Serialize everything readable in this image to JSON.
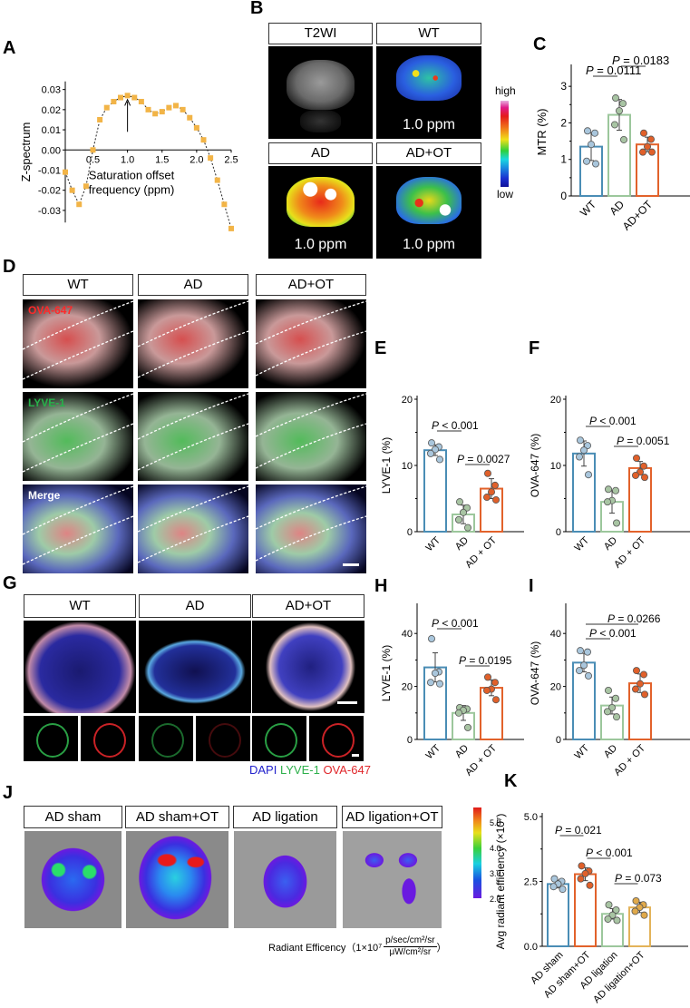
{
  "panels": {
    "A": "A",
    "B": "B",
    "C": "C",
    "D": "D",
    "E": "E",
    "F": "F",
    "G": "G",
    "H": "H",
    "I": "I",
    "J": "J",
    "K": "K"
  },
  "panel_b": {
    "headers": [
      "T2WI",
      "WT",
      "AD",
      "AD+OT"
    ],
    "ppm_label": "1.0 ppm",
    "colorbar_high": "high",
    "colorbar_low": "low"
  },
  "panel_d": {
    "headers": [
      "WT",
      "AD",
      "AD+OT"
    ],
    "rows": [
      "OVA-647",
      "LYVE-1",
      "Merge"
    ],
    "colors": {
      "OVA-647": "#ff2a2a",
      "LYVE-1": "#27b14a",
      "Merge": "#ffffff"
    }
  },
  "panel_g": {
    "headers": [
      "WT",
      "AD",
      "AD+OT"
    ],
    "legend": [
      {
        "label": "DAPI",
        "color": "#2222cc"
      },
      {
        "label": "LYVE-1",
        "color": "#2db04b"
      },
      {
        "label": "OVA-647",
        "color": "#e0262a"
      }
    ]
  },
  "panel_j": {
    "headers": [
      "AD sham",
      "AD sham+OT",
      "AD ligation",
      "AD ligation+OT"
    ],
    "colorbar_ticks": [
      "5.0",
      "4.0",
      "3.0",
      "2.0"
    ],
    "caption_prefix": "Radiant Efficency（1×10",
    "caption_exp": "7",
    "caption_num": "p/sec/cm²/sr",
    "caption_den": "μW/cm²/sr",
    "caption_suffix": "）"
  },
  "chart_data": [
    {
      "id": "A",
      "type": "scatter",
      "title": "",
      "xlabel": "Saturation offset frequency (ppm)",
      "ylabel": "Z-spectrum",
      "x": [
        0.1,
        0.2,
        0.3,
        0.4,
        0.5,
        0.6,
        0.7,
        0.8,
        0.9,
        1.0,
        1.1,
        1.2,
        1.3,
        1.4,
        1.5,
        1.6,
        1.7,
        1.8,
        1.9,
        2.0,
        2.1,
        2.2,
        2.3,
        2.4,
        2.5
      ],
      "y": [
        -0.011,
        -0.02,
        -0.027,
        -0.018,
        0.0,
        0.015,
        0.021,
        0.024,
        0.026,
        0.027,
        0.026,
        0.024,
        0.02,
        0.018,
        0.019,
        0.021,
        0.022,
        0.02,
        0.016,
        0.011,
        0.005,
        -0.004,
        -0.015,
        -0.027,
        -0.039
      ],
      "xticks": [
        "0.5",
        "1.0",
        "1.5",
        "2.0",
        "2.5"
      ],
      "yticks": [
        "0.03",
        "0.02",
        "0.01",
        "0.00",
        "-0.01",
        "-0.02",
        "-0.03"
      ],
      "annotation": "arrow at 1.0 ppm",
      "xlim": [
        0.1,
        2.5
      ],
      "ylim": [
        -0.035,
        0.033
      ]
    },
    {
      "id": "C",
      "type": "bar",
      "ylabel": "MTR (%)",
      "categories": [
        "WT",
        "AD",
        "AD+OT"
      ],
      "values": [
        1.35,
        2.22,
        1.41
      ],
      "errors": [
        0.38,
        0.42,
        0.2
      ],
      "points": [
        [
          1.78,
          1.72,
          1.41,
          0.95,
          0.88
        ],
        [
          2.68,
          2.53,
          2.33,
          1.95,
          1.54
        ],
        [
          1.72,
          1.55,
          1.35,
          1.2,
          1.2
        ]
      ],
      "colors": [
        "#4a8db5",
        "#9cc79c",
        "#e2622b"
      ],
      "point_colors": [
        "#a9c6dc",
        "#a8c4a3",
        "#e0602a"
      ],
      "yticks": [
        "0",
        "1",
        "2",
        "3"
      ],
      "ylim": [
        0,
        3.5
      ],
      "pvalues": [
        {
          "label": "P = 0.0111",
          "from": 0,
          "to": 1
        },
        {
          "label": "P = 0.0183",
          "from": 1,
          "to": 2
        }
      ]
    },
    {
      "id": "E",
      "type": "bar",
      "ylabel": "LYVE-1 (%)",
      "categories": [
        "WT",
        "AD",
        "AD + OT"
      ],
      "values": [
        12.3,
        2.6,
        6.5
      ],
      "errors": [
        0.8,
        1.4,
        1.5
      ],
      "points": [
        [
          13.4,
          12.8,
          12.4,
          11.8,
          10.9
        ],
        [
          4.5,
          3.6,
          2.9,
          1.8,
          0.6
        ],
        [
          8.8,
          7.0,
          6.0,
          5.2,
          4.8
        ]
      ],
      "colors": [
        "#4a8db5",
        "#9cc79c",
        "#e2622b"
      ],
      "point_colors": [
        "#a9c6dc",
        "#a8c4a3",
        "#e0602a"
      ],
      "yticks": [
        "0",
        "10",
        "20"
      ],
      "ylim": [
        0,
        20
      ],
      "pvalues": [
        {
          "label": "P < 0.001",
          "from": 0,
          "to": 1
        },
        {
          "label": "P = 0.0027",
          "from": 1,
          "to": 2
        }
      ]
    },
    {
      "id": "F",
      "type": "bar",
      "ylabel": "OVA-647 (%)",
      "categories": [
        "WT",
        "AD",
        "AD + OT"
      ],
      "values": [
        11.8,
        4.5,
        9.6
      ],
      "errors": [
        1.9,
        1.7,
        1.0
      ],
      "points": [
        [
          13.8,
          13.0,
          12.3,
          11.3,
          8.6
        ],
        [
          6.4,
          6.2,
          4.7,
          4.5,
          1.3
        ],
        [
          11.1,
          9.9,
          9.0,
          8.5,
          8.2
        ]
      ],
      "colors": [
        "#4a8db5",
        "#9cc79c",
        "#e2622b"
      ],
      "point_colors": [
        "#a9c6dc",
        "#a8c4a3",
        "#e0602a"
      ],
      "yticks": [
        "0",
        "10",
        "20"
      ],
      "ylim": [
        0,
        20
      ],
      "pvalues": [
        {
          "label": "P < 0.001",
          "from": 0,
          "to": 1
        },
        {
          "label": "P = 0.0051",
          "from": 1,
          "to": 2
        }
      ]
    },
    {
      "id": "H",
      "type": "bar",
      "ylabel": "LYVE-1 (%)",
      "categories": [
        "WT",
        "AD",
        "AD + OT"
      ],
      "values": [
        27.2,
        10.0,
        19.5
      ],
      "errors": [
        5.5,
        2.8,
        3.0
      ],
      "points": [
        [
          38.0,
          25.5,
          25.0,
          21.5,
          21.0
        ],
        [
          12.0,
          11.5,
          11.0,
          10.0,
          4.5
        ],
        [
          23.5,
          21.5,
          19.0,
          18.5,
          15.0
        ]
      ],
      "colors": [
        "#4a8db5",
        "#9cc79c",
        "#e2622b"
      ],
      "point_colors": [
        "#a9c6dc",
        "#a8c4a3",
        "#e0602a"
      ],
      "yticks": [
        "0",
        "20",
        "40"
      ],
      "ylim": [
        0,
        50
      ],
      "pvalues": [
        {
          "label": "P < 0.001",
          "from": 0,
          "to": 1
        },
        {
          "label": "P = 0.0195",
          "from": 1,
          "to": 2
        }
      ]
    },
    {
      "id": "I",
      "type": "bar",
      "ylabel": "OVA-647 (%)",
      "categories": [
        "WT",
        "AD",
        "AD + OT"
      ],
      "values": [
        29.0,
        12.8,
        21.2
      ],
      "errors": [
        3.5,
        3.2,
        3.5
      ],
      "points": [
        [
          33.5,
          33.0,
          28.0,
          26.0,
          24.0
        ],
        [
          18.5,
          15.5,
          12.0,
          10.5,
          8.5
        ],
        [
          26.0,
          24.5,
          21.0,
          19.0,
          17.0
        ]
      ],
      "colors": [
        "#4a8db5",
        "#9cc79c",
        "#e2622b"
      ],
      "point_colors": [
        "#a9c6dc",
        "#a8c4a3",
        "#e0602a"
      ],
      "yticks": [
        "0",
        "20",
        "40"
      ],
      "ylim": [
        0,
        50
      ],
      "pvalues": [
        {
          "label": "P < 0.001",
          "from": 0,
          "to": 1
        },
        {
          "label": "P = 0.0266",
          "from": 0,
          "to": 2
        }
      ]
    },
    {
      "id": "K",
      "type": "bar",
      "ylabel": "Avg radiant efficiency (×10⁷)",
      "categories": [
        "AD sham",
        "AD sham+OT",
        "AD ligation",
        "AD ligation+OT"
      ],
      "values": [
        2.4,
        2.78,
        1.25,
        1.5
      ],
      "errors": [
        0.15,
        0.25,
        0.2,
        0.2
      ],
      "points": [
        [
          2.6,
          2.5,
          2.4,
          2.3,
          2.2
        ],
        [
          3.1,
          2.9,
          2.8,
          2.6,
          2.35
        ],
        [
          1.6,
          1.4,
          1.2,
          1.05,
          1.0
        ],
        [
          1.75,
          1.6,
          1.5,
          1.35,
          1.2
        ]
      ],
      "colors": [
        "#4a8db5",
        "#e2622b",
        "#9cc79c",
        "#e3b35a"
      ],
      "point_colors": [
        "#a9c6dc",
        "#e0602a",
        "#a8c4a3",
        "#e0a94a"
      ],
      "yticks": [
        "0.0",
        "2.5",
        "5.0"
      ],
      "ylim": [
        0,
        5
      ],
      "pvalues": [
        {
          "label": "P = 0.021",
          "from": 0,
          "to": 1
        },
        {
          "label": "P < 0.001",
          "from": 1,
          "to": 2
        },
        {
          "label": "P = 0.073",
          "from": 2,
          "to": 3
        }
      ]
    }
  ]
}
